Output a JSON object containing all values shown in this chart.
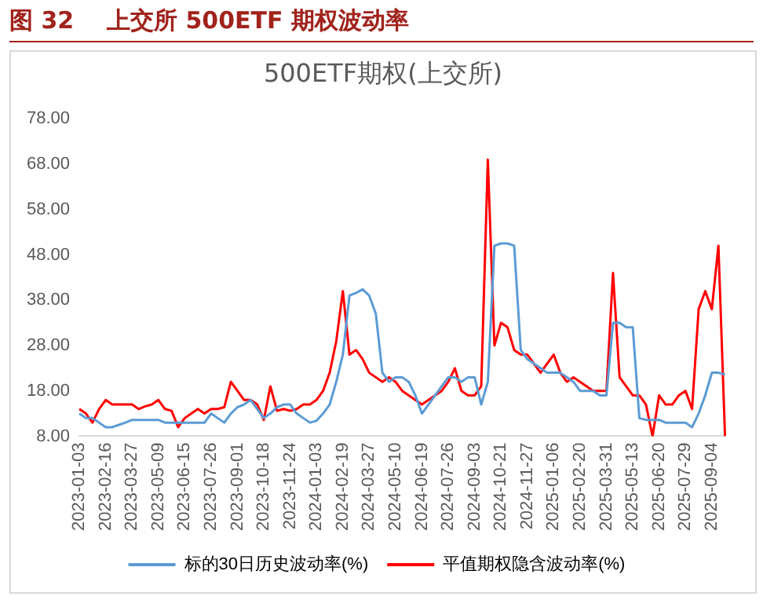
{
  "chart_data": {
    "type": "line",
    "title": "图 32    上交所 500ETF 期权波动率",
    "subtitle": "500ETF期权(上交所)",
    "categories": [
      "2023-01-03",
      null,
      null,
      null,
      "2023-02-16",
      null,
      null,
      null,
      "2023-03-27",
      null,
      null,
      null,
      "2023-05-09",
      null,
      null,
      null,
      "2023-06-15",
      null,
      null,
      null,
      "2023-07-26",
      null,
      null,
      null,
      "2023-09-01",
      null,
      null,
      null,
      "2023-10-18",
      null,
      null,
      null,
      "2023-11-24",
      null,
      null,
      null,
      "2024-01-03",
      null,
      null,
      null,
      "2024-02-19",
      null,
      null,
      null,
      "2024-03-27",
      null,
      null,
      null,
      "2024-05-10",
      null,
      null,
      null,
      "2024-06-19",
      null,
      null,
      null,
      "2024-07-26",
      null,
      null,
      null,
      "2024-09-03",
      null,
      null,
      null,
      "2024-10-21",
      null,
      null,
      null,
      "2024-11-27",
      null,
      null,
      null,
      "2025-01-06",
      null,
      null,
      null,
      "2025-02-20",
      null,
      null,
      null,
      "2025-03-31",
      null,
      null,
      null,
      "2025-05-13",
      null,
      null,
      null,
      "2025-06-20",
      null,
      null,
      null,
      "2025-07-29",
      null,
      null,
      null,
      "2025-09-04",
      null,
      null
    ],
    "series": [
      {
        "name": "标的30日历史波动率(%)",
        "color": "#5b9bd5",
        "values": [
          13,
          12,
          12,
          11,
          10,
          10,
          10.5,
          11,
          11.6,
          11.6,
          11.6,
          11.6,
          11.6,
          11,
          11,
          11,
          11,
          11,
          11,
          11,
          13,
          12,
          11,
          13,
          14.4,
          15,
          16,
          14,
          12,
          13,
          14.4,
          15,
          15,
          13,
          12,
          11,
          11.4,
          13,
          15,
          20,
          26,
          39,
          39.6,
          40.4,
          39,
          35,
          22,
          20,
          21,
          21,
          20,
          17,
          13,
          15,
          17,
          19,
          21,
          21,
          20,
          21,
          21,
          15,
          20,
          50,
          50.5,
          50.5,
          50,
          27,
          25,
          24,
          23,
          22,
          22,
          22,
          21,
          20,
          18,
          18,
          18,
          17,
          17,
          33,
          33,
          32,
          32,
          12,
          11.6,
          11.6,
          11.6,
          11,
          11,
          11,
          11,
          10,
          13,
          17,
          22,
          22,
          21.6
        ]
      },
      {
        "name": "平值期权隐含波动率(%)",
        "color": "#ff0000",
        "values": [
          14,
          13,
          11,
          14,
          16,
          15,
          15,
          15,
          15,
          14,
          14.6,
          15,
          16,
          14,
          13.6,
          10,
          12,
          13,
          14,
          13,
          14,
          14,
          14.4,
          20,
          18,
          16,
          16,
          15,
          11.6,
          19,
          13.6,
          14,
          13.6,
          14,
          15,
          15,
          16,
          18,
          22,
          29,
          40,
          26,
          27,
          25,
          22,
          21,
          20,
          21,
          20,
          18,
          17,
          16,
          15,
          16,
          17,
          18,
          20,
          23,
          18,
          17,
          17,
          19,
          69,
          28,
          33,
          32,
          27,
          26,
          26,
          24,
          22,
          24,
          26,
          22,
          20,
          21,
          20,
          19,
          18,
          18,
          18,
          44,
          21,
          19,
          17,
          17,
          15,
          8,
          17,
          15,
          15,
          17,
          18,
          14,
          36,
          40,
          36,
          50,
          8
        ]
      }
    ],
    "ylim": [
      8,
      78
    ],
    "yticks": [
      {
        "value": 8,
        "label": "8.00"
      },
      {
        "value": 18,
        "label": "18.00"
      },
      {
        "value": 28,
        "label": "28.00"
      },
      {
        "value": 38,
        "label": "38.00"
      },
      {
        "value": 48,
        "label": "48.00"
      },
      {
        "value": 58,
        "label": "58.00"
      },
      {
        "value": 68,
        "label": "68.00"
      },
      {
        "value": 78,
        "label": "78.00"
      }
    ],
    "grid": false,
    "legend": "bottom"
  }
}
